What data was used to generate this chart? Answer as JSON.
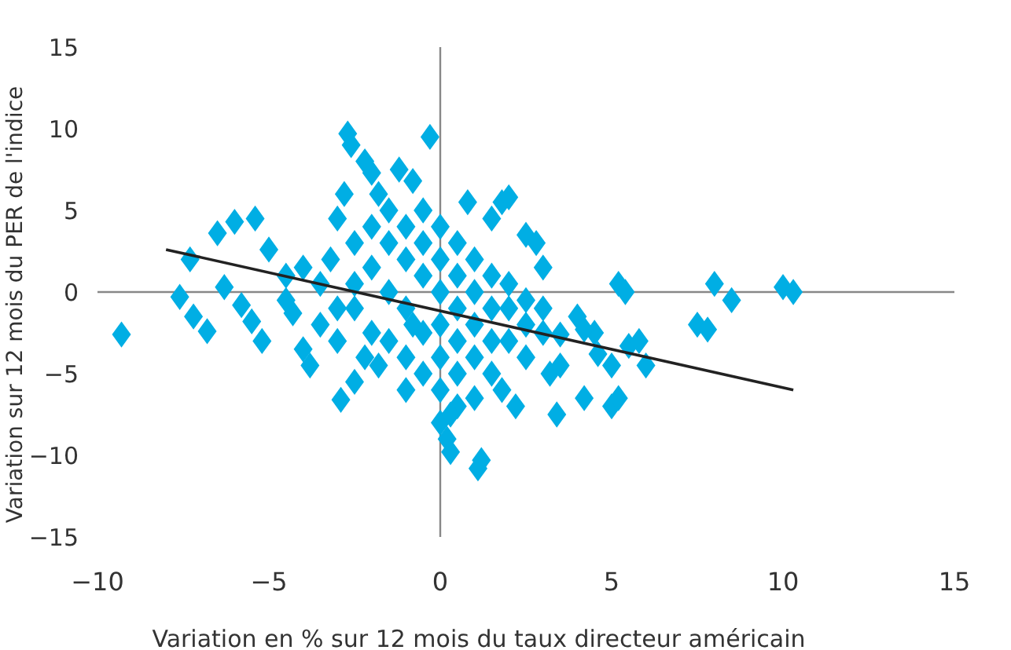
{
  "chart_data": {
    "type": "scatter",
    "xlabel": "Variation en % sur 12 mois du taux directeur américain",
    "ylabel": "Variation sur 12 mois du PER de l'indice",
    "xlim": [
      -10,
      15
    ],
    "xticks": [
      -10,
      -5,
      0,
      5,
      10,
      15
    ],
    "ylim": [
      -15,
      15
    ],
    "yticks": [
      -15,
      -10,
      -5,
      0,
      5,
      10,
      15
    ],
    "marker": "diamond",
    "series": [
      {
        "color": "#00aee4",
        "x": [
          -9.3,
          -7.3,
          -7.6,
          -7.2,
          -6.8,
          -6.5,
          -6.0,
          -5.4,
          -6.3,
          -5.8,
          -5.5,
          -5.2,
          -5.0,
          -4.5,
          -4.3,
          -4.0,
          -3.8,
          -3.5,
          -3.2,
          -3.0,
          -2.8,
          -2.7,
          -2.6,
          -2.9,
          -2.5,
          -2.2,
          -2.0,
          -1.8,
          -1.5,
          -1.2,
          -1.0,
          -0.8,
          -0.5,
          -0.3,
          0,
          0.2,
          0.3,
          0.5,
          0.8,
          1.0,
          1.2,
          1.1,
          1.5,
          1.8,
          2.0,
          2.2,
          2.5,
          2.8,
          3.0,
          3.2,
          3.4,
          3.5,
          4.0,
          4.2,
          4.5,
          5.0,
          5.2,
          5.4,
          5.0,
          5.2,
          5.5,
          5.8,
          6.0,
          7.5,
          7.8,
          8.0,
          8.5,
          10.0,
          10.3,
          3.5,
          4.2,
          4.6,
          -2.5,
          -2.5,
          -2.5,
          -2,
          -2,
          -2,
          -1.5,
          -1.5,
          -1.5,
          -1,
          -1,
          -1,
          -1,
          -0.5,
          -0.5,
          -0.5,
          -0.5,
          0,
          0,
          0,
          0,
          0,
          0,
          0.5,
          0.5,
          0.5,
          0.5,
          0.5,
          1,
          1,
          1,
          1,
          1.5,
          1.5,
          1.5,
          1.5,
          2,
          2,
          2,
          2.5,
          2.5,
          2.5,
          3,
          3,
          -3.5,
          -4,
          -4.5,
          -3,
          -3,
          -2.2,
          -1.8,
          -0.8,
          0.3,
          1.8
        ],
        "values": [
          -2.6,
          2.0,
          -0.3,
          -1.5,
          -2.4,
          3.6,
          4.3,
          4.5,
          0.3,
          -0.8,
          -1.8,
          -3.0,
          2.6,
          1.0,
          -1.3,
          -3.5,
          -4.5,
          -2.0,
          2.0,
          4.5,
          6.0,
          9.7,
          9.0,
          -6.6,
          -5.5,
          8.0,
          7.3,
          -4.5,
          3.0,
          7.5,
          -6.0,
          -2.0,
          5.0,
          9.5,
          -8.0,
          -9.0,
          -9.8,
          -7.0,
          5.5,
          -6.5,
          -10.3,
          -10.8,
          4.5,
          5.5,
          5.8,
          -7.0,
          3.5,
          3.0,
          1.5,
          -5.0,
          -7.5,
          -4.5,
          -1.5,
          -6.5,
          -2.5,
          -4.5,
          0.5,
          0.0,
          -7.0,
          -6.5,
          -3.3,
          -3.0,
          -4.5,
          -2.0,
          -2.3,
          0.5,
          -0.5,
          0.3,
          0.0,
          -2.6,
          -2.3,
          -3.8,
          0.5,
          -1,
          3,
          1.5,
          -2.5,
          4,
          0,
          -3,
          5,
          2,
          -1,
          -4,
          4,
          1,
          -2.5,
          3,
          -5,
          0,
          2,
          -2,
          -4,
          -6,
          4,
          1,
          -1,
          -3,
          -5,
          3,
          0,
          -2,
          -4,
          2,
          -1,
          -3,
          -5,
          1,
          -1,
          -3,
          0.5,
          -2,
          -4,
          -0.5,
          -2.5,
          -1,
          0.5,
          1.5,
          -0.5,
          -1,
          -3,
          -4,
          6,
          6.8,
          -7.5,
          -6
        ]
      },
      {
        "type": "line",
        "marker": "none",
        "color": "#222222",
        "x": [
          -8,
          10.3
        ],
        "values": [
          2.6,
          -6.0
        ]
      }
    ]
  }
}
